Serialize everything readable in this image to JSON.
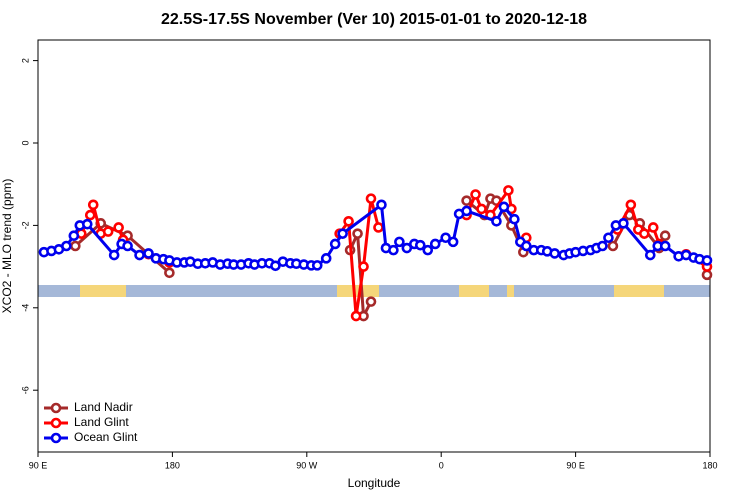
{
  "chart_data": {
    "type": "line",
    "title": "22.5S-17.5S November (Ver 10)   2015-01-01 to 2020-12-18",
    "x_label": "Longitude",
    "y_label": "XCO2 - MLO trend (ppm)",
    "xlim": [
      90,
      540
    ],
    "xticks": [
      {
        "value": 90,
        "label": "90 E"
      },
      180,
      {
        "value": 270,
        "label": "90 W"
      },
      {
        "value": 360,
        "label": "0"
      },
      {
        "value": 450,
        "label": "90 E"
      },
      {
        "value": 540,
        "label": "180"
      }
    ],
    "ylim": [
      -7.5,
      2.5
    ],
    "yticks": [
      2,
      0,
      -2,
      -4,
      -6
    ],
    "legend": "lower left",
    "series": [
      {
        "name": "Land Nadir",
        "color": "#a52a2a",
        "x": [
          115,
          132,
          150,
          178,
          null,
          299,
          304,
          308,
          313,
          null,
          377,
          389,
          393,
          397,
          407,
          415,
          null,
          475,
          486,
          493,
          506,
          510,
          null,
          538
        ],
        "values": [
          -2.5,
          -1.95,
          -2.25,
          -3.15,
          null,
          -2.6,
          -2.2,
          -4.2,
          -3.85,
          null,
          -1.4,
          -1.75,
          -1.35,
          -1.4,
          -2.0,
          -2.65,
          null,
          -2.5,
          -1.75,
          -1.95,
          -2.55,
          -2.25,
          null,
          -3.2
        ]
      },
      {
        "name": "Land Glint",
        "color": "#ff0000",
        "x": [
          119,
          125,
          127,
          132,
          137,
          144,
          147,
          null,
          164,
          178,
          null,
          292,
          298,
          303,
          308,
          313,
          318,
          null,
          377,
          383,
          387,
          393,
          405,
          407,
          null,
          417,
          null,
          478,
          487,
          492,
          496,
          502,
          506,
          null,
          524,
          538
        ],
        "values": [
          -2.2,
          -1.75,
          -1.5,
          -2.2,
          -2.15,
          -2.05,
          -2.35,
          null,
          -2.7,
          -2.9,
          null,
          -2.2,
          -1.9,
          -4.2,
          -3.0,
          -1.35,
          -2.05,
          null,
          -1.75,
          -1.25,
          -1.6,
          -1.75,
          -1.15,
          -1.6,
          null,
          -2.3,
          null,
          -2.1,
          -1.5,
          -2.1,
          -2.2,
          -2.05,
          -2.45,
          null,
          -2.7,
          -3.0
        ]
      },
      {
        "name": "Ocean Glint",
        "color": "#0000ee",
        "x": [
          94,
          99,
          104,
          109,
          114,
          118,
          123,
          141,
          146,
          150,
          158,
          164,
          169,
          174,
          178,
          183,
          188,
          192,
          197,
          202,
          207,
          212,
          217,
          221,
          226,
          231,
          235,
          240,
          245,
          249,
          254,
          259,
          263,
          268,
          273,
          277,
          283,
          289,
          294,
          320,
          323,
          328,
          332,
          337,
          342,
          346,
          351,
          356,
          363,
          368,
          372,
          377,
          397,
          402,
          409,
          413,
          417,
          422,
          427,
          431,
          436,
          442,
          446,
          450,
          455,
          460,
          464,
          468,
          472,
          477,
          482,
          500,
          505,
          510,
          519,
          524,
          529,
          533,
          538
        ],
        "values": [
          -2.65,
          -2.62,
          -2.58,
          -2.5,
          -2.25,
          -2.0,
          -1.97,
          -2.72,
          -2.45,
          -2.5,
          -2.72,
          -2.68,
          -2.8,
          -2.82,
          -2.85,
          -2.9,
          -2.9,
          -2.88,
          -2.93,
          -2.92,
          -2.9,
          -2.95,
          -2.93,
          -2.95,
          -2.95,
          -2.92,
          -2.95,
          -2.92,
          -2.92,
          -2.98,
          -2.88,
          -2.92,
          -2.93,
          -2.95,
          -2.97,
          -2.97,
          -2.8,
          -2.45,
          -2.2,
          -1.5,
          -2.55,
          -2.6,
          -2.4,
          -2.55,
          -2.45,
          -2.48,
          -2.6,
          -2.45,
          -2.3,
          -2.4,
          -1.72,
          -1.65,
          -1.9,
          -1.55,
          -1.85,
          -2.4,
          -2.5,
          -2.6,
          -2.6,
          -2.63,
          -2.68,
          -2.72,
          -2.68,
          -2.65,
          -2.62,
          -2.6,
          -2.55,
          -2.5,
          -2.3,
          -2.0,
          -1.95,
          -2.72,
          -2.5,
          -2.5,
          -2.75,
          -2.72,
          -2.78,
          -2.82,
          -2.85
        ]
      }
    ]
  }
}
